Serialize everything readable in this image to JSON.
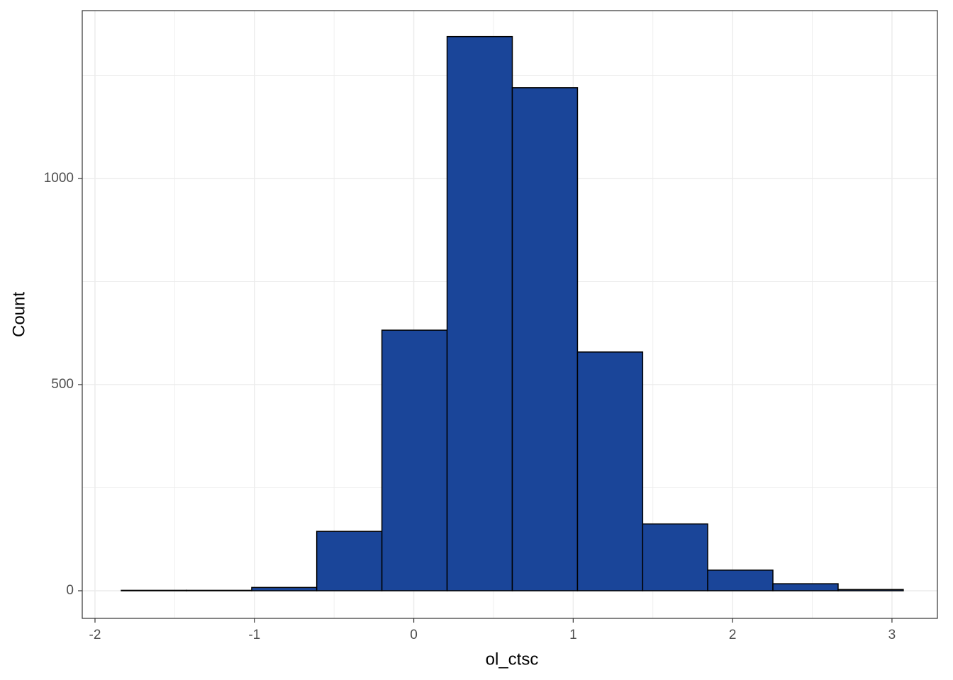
{
  "chart_data": {
    "type": "histogram",
    "x_label": "ol_ctsc",
    "y_label": "Count",
    "bins": [
      -1.835,
      -1.426,
      -1.017,
      -0.609,
      -0.2,
      0.209,
      0.618,
      1.027,
      1.436,
      1.844,
      2.253,
      2.662,
      3.071
    ],
    "counts": [
      1,
      1,
      8,
      144,
      632,
      1344,
      1220,
      579,
      162,
      50,
      17,
      3
    ],
    "color": "#1a4599",
    "xlim": [
      -2.08,
      3.285
    ],
    "xticks": [
      -2,
      -1,
      0,
      1,
      2,
      3
    ],
    "ylim": [
      -67,
      1407
    ],
    "yticks": [
      0,
      500,
      1000
    ],
    "grid": true
  }
}
